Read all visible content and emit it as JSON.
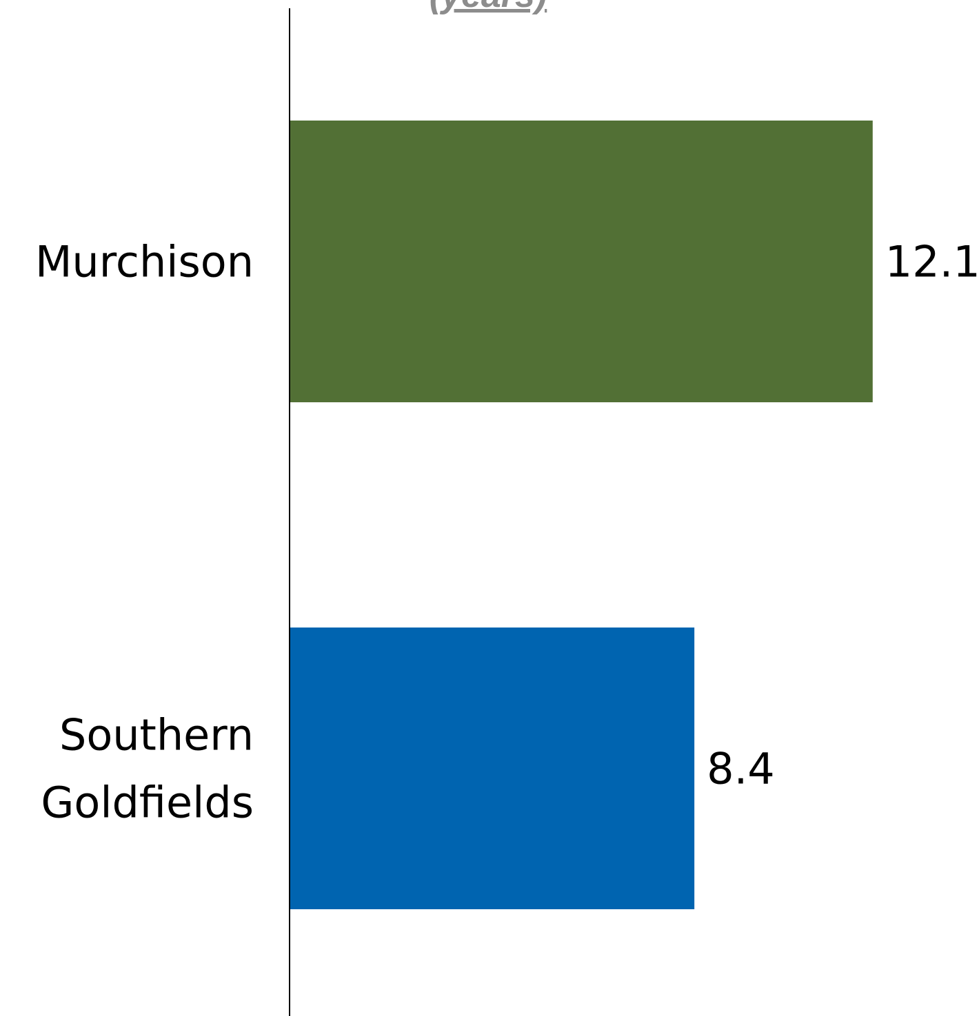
{
  "chart_data": {
    "type": "bar",
    "orientation": "horizontal",
    "title": "(years)",
    "categories": [
      {
        "label": [
          "Murchison"
        ],
        "value": 12.1,
        "display": "12.1",
        "color": "#527035"
      },
      {
        "label": [
          "Southern",
          "Goldfields"
        ],
        "value": 8.4,
        "display": "8.4",
        "color": "#0064B0"
      }
    ],
    "grid": false,
    "legend": "none",
    "axis_line": "left"
  }
}
